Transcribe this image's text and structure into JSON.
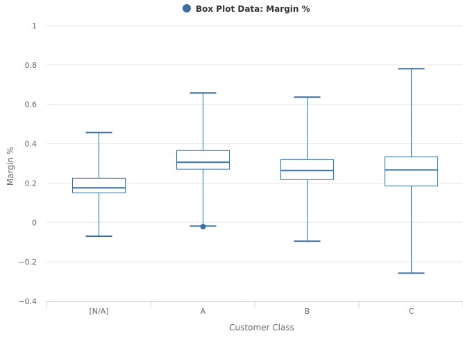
{
  "chart_data": {
    "type": "boxplot",
    "title": "",
    "legend": {
      "label": "Box Plot Data: Margin %",
      "placement": "top-center"
    },
    "xlabel": "Customer Class",
    "ylabel": "Margin %",
    "ylim": [
      -0.4,
      1
    ],
    "yticks": [
      -0.4,
      -0.2,
      0,
      0.2,
      0.4,
      0.6,
      0.8,
      1
    ],
    "ytick_labels": [
      "−0.4",
      "−0.2",
      "0",
      "0.2",
      "0.4",
      "0.6",
      "0.8",
      "1"
    ],
    "grid": true,
    "categories": [
      "[N/A]",
      "A",
      "B",
      "C"
    ],
    "boxes": [
      {
        "low": -0.07,
        "q1": 0.151,
        "median": 0.176,
        "q3": 0.225,
        "high": 0.457
      },
      {
        "low": -0.018,
        "q1": 0.271,
        "median": 0.306,
        "q3": 0.366,
        "high": 0.658
      },
      {
        "low": -0.095,
        "q1": 0.218,
        "median": 0.264,
        "q3": 0.32,
        "high": 0.637
      },
      {
        "low": -0.257,
        "q1": 0.186,
        "median": 0.267,
        "q3": 0.334,
        "high": 0.781
      }
    ],
    "outliers": [
      {
        "category": "A",
        "value": -0.021
      }
    ],
    "color": "#3a6fa5"
  }
}
